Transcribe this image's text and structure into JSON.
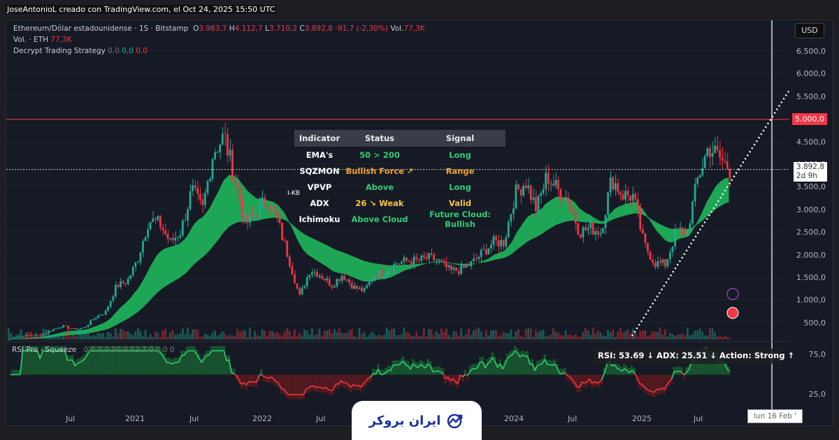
{
  "credit": "JoseAntonioL creado con TradingView.com, el Oct 24, 2025 15:50 UTC",
  "legend": {
    "symbol": "Ethereum/Dólar estadounidense · 1S · Bitstamp",
    "o_label": "O",
    "o": "3.983,7",
    "h_label": "H",
    "h": "4.112,7",
    "l_label": "L",
    "l": "3.710,2",
    "c_label": "C",
    "c": "3.892,8",
    "change": "-91,7 (-2,30%)",
    "vol_label": "Vol.",
    "vol": "77,3K",
    "vol_eth_label": "Vol. · ETH",
    "vol_eth": "77,3K",
    "strategy_label": "Decrypt Trading Strategy",
    "strategy_v1": "0,0",
    "strategy_v2": "0,0",
    "strategy_v3": "0,0"
  },
  "currency": "USD",
  "price_axis": [
    "6.500,0",
    "6.000,0",
    "5.500,0",
    "5.000,0",
    "4.500,0",
    "4.000,0",
    "3.500,0",
    "3.000,0",
    "2.500,0",
    "2.000,0",
    "1.500,0",
    "1.000,0",
    "500,0"
  ],
  "price_marker_red": "5.000,0",
  "price_current": "3.892,8",
  "price_current_time": "2d 9h",
  "marker_kb": "I-KB",
  "table": {
    "headers": [
      "Indicator",
      "Status",
      "Signal"
    ],
    "rows": [
      [
        "EMA's",
        "50 > 200",
        "Long"
      ],
      [
        "SQZMON",
        "Bullish Force ↗",
        "Range"
      ],
      [
        "VPVP",
        "Above",
        "Long"
      ],
      [
        "ADX",
        "26 ↘ Weak",
        "Valid"
      ],
      [
        "Ichimoku",
        "Above Cloud",
        "Future Cloud: Bullish"
      ]
    ]
  },
  "rsi": {
    "label": "RSI Pro - Squeeze",
    "values": "0,0 0,0 50,0 53,7 0 0 0 0",
    "readout": "RSI: 53.69 ↓   ADX: 25.51 ↓   Action: Strong ↑",
    "axis": [
      "75,0",
      "25,0"
    ]
  },
  "x_axis": [
    "Jul",
    "2021",
    "Jul",
    "2022",
    "Jul",
    "Jul",
    "2024",
    "Jul",
    "2025",
    "Jul"
  ],
  "crosshair_date": "lun 16 Feb '",
  "logo_text": "ایران بروکر",
  "colors": {
    "up": "#22ab94",
    "down": "#f23645",
    "cloud": "#1fbf5f",
    "bg": "#161a25"
  },
  "chart_data": {
    "type": "candlestick",
    "interval": "1W",
    "ylim": [
      0,
      6800
    ],
    "monthly_close": {
      "x": [
        "2020-03",
        "2020-04",
        "2020-05",
        "2020-06",
        "2020-07",
        "2020-08",
        "2020-09",
        "2020-10",
        "2020-11",
        "2020-12",
        "2021-01",
        "2021-02",
        "2021-03",
        "2021-04",
        "2021-05",
        "2021-06",
        "2021-07",
        "2021-08",
        "2021-09",
        "2021-10",
        "2021-11",
        "2021-12",
        "2022-01",
        "2022-02",
        "2022-03",
        "2022-04",
        "2022-05",
        "2022-06",
        "2022-07",
        "2022-08",
        "2022-09",
        "2022-10",
        "2022-11",
        "2022-12",
        "2023-01",
        "2023-02",
        "2023-03",
        "2023-04",
        "2023-05",
        "2023-06",
        "2023-07",
        "2023-08",
        "2023-09",
        "2023-10",
        "2023-11",
        "2023-12",
        "2024-01",
        "2024-02",
        "2024-03",
        "2024-04",
        "2024-05",
        "2024-06",
        "2024-07",
        "2024-08",
        "2024-09",
        "2024-10",
        "2024-11",
        "2024-12",
        "2025-01",
        "2025-02",
        "2025-03",
        "2025-04",
        "2025-05",
        "2025-06",
        "2025-07",
        "2025-08",
        "2025-09",
        "2025-10"
      ],
      "y": [
        130,
        200,
        230,
        225,
        345,
        430,
        360,
        385,
        615,
        737,
        1314,
        1416,
        1918,
        2773,
        2706,
        2275,
        2536,
        3433,
        3000,
        4288,
        4630,
        3680,
        2688,
        2920,
        3280,
        2730,
        1940,
        1070,
        1680,
        1550,
        1330,
        1570,
        1295,
        1196,
        1585,
        1605,
        1822,
        1870,
        1875,
        1934,
        1855,
        1645,
        1670,
        1815,
        2050,
        2280,
        2283,
        3340,
        3640,
        3015,
        3760,
        3435,
        3230,
        2515,
        2600,
        2515,
        3700,
        3335,
        3300,
        2240,
        1820,
        1795,
        2530,
        2485,
        3700,
        4400,
        4150,
        3893
      ]
    },
    "hlines": [
      5000,
      3892.8
    ]
  }
}
